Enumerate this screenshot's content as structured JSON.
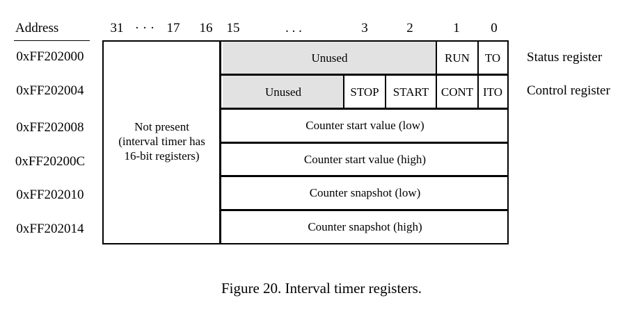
{
  "header": {
    "address_label": "Address",
    "bits": {
      "b31": "31",
      "dots1": "· · ·",
      "b17": "17",
      "b16": "16",
      "b15": "15",
      "dots2": ". . .",
      "b3": "3",
      "b2": "2",
      "b1": "1",
      "b0": "0"
    }
  },
  "addresses": [
    "0xFF202000",
    "0xFF202004",
    "0xFF202008",
    "0xFF20200C",
    "0xFF202010",
    "0xFF202014"
  ],
  "register_names": {
    "status": "Status register",
    "control": "Control register"
  },
  "not_present": {
    "line1": "Not present",
    "line2": "(interval timer has",
    "line3": "16-bit registers)"
  },
  "status_fields": {
    "unused": "Unused",
    "run": "RUN",
    "to": "TO"
  },
  "control_fields": {
    "unused": "Unused",
    "stop": "STOP",
    "start": "START",
    "cont": "CONT",
    "ito": "ITO"
  },
  "wide_fields": {
    "start_low": "Counter start value (low)",
    "start_high": "Counter start value (high)",
    "snap_low": "Counter snapshot (low)",
    "snap_high": "Counter snapshot (high)"
  },
  "caption": "Figure 20. Interval timer registers.",
  "colors": {
    "unused_fill": "#e2e2e2",
    "line": "#000000"
  }
}
